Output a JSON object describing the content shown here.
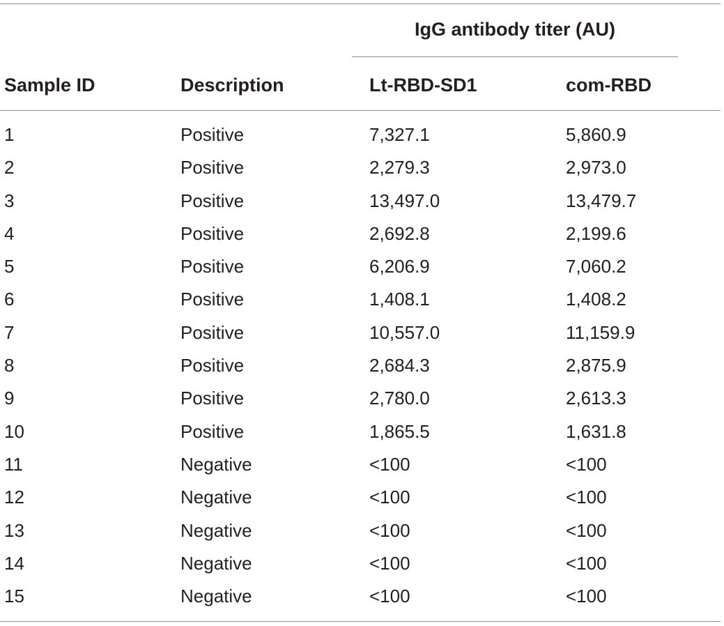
{
  "table": {
    "group_header": "IgG antibody titer (AU)",
    "columns": [
      "Sample ID",
      "Description",
      "Lt-RBD-SD1",
      "com-RBD"
    ],
    "rows": [
      [
        "1",
        "Positive",
        "7,327.1",
        "5,860.9"
      ],
      [
        "2",
        "Positive",
        "2,279.3",
        "2,973.0"
      ],
      [
        "3",
        "Positive",
        "13,497.0",
        "13,479.7"
      ],
      [
        "4",
        "Positive",
        "2,692.8",
        "2,199.6"
      ],
      [
        "5",
        "Positive",
        "6,206.9",
        "7,060.2"
      ],
      [
        "6",
        "Positive",
        "1,408.1",
        "1,408.2"
      ],
      [
        "7",
        "Positive",
        "10,557.0",
        "11,159.9"
      ],
      [
        "8",
        "Positive",
        "2,684.3",
        "2,875.9"
      ],
      [
        "9",
        "Positive",
        "2,780.0",
        "2,613.3"
      ],
      [
        "10",
        "Positive",
        "1,865.5",
        "1,631.8"
      ],
      [
        "11",
        "Negative",
        "<100",
        "<100"
      ],
      [
        "12",
        "Negative",
        "<100",
        "<100"
      ],
      [
        "13",
        "Negative",
        "<100",
        "<100"
      ],
      [
        "14",
        "Negative",
        "<100",
        "<100"
      ],
      [
        "15",
        "Negative",
        "<100",
        "<100"
      ]
    ]
  }
}
